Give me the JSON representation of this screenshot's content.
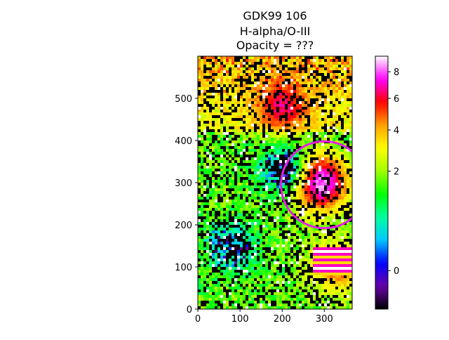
{
  "chart_data": {
    "type": "heatmap",
    "title_lines": [
      "GDK99 106",
      "H-alpha/O-III",
      "Opacity = ???"
    ],
    "xlabel": "",
    "ylabel": "",
    "xlim": [
      0,
      366
    ],
    "ylim": [
      0,
      600
    ],
    "x_ticks": [
      0,
      100,
      200,
      300
    ],
    "y_ticks": [
      0,
      100,
      200,
      300,
      400,
      500
    ],
    "colormap": "gist_ncar-like (black→purple→blue→cyan→green→yellow→orange→red→pink→white)",
    "colorbar": {
      "min": -0.3,
      "max": 9.3,
      "ticks": [
        0,
        2,
        4,
        6,
        8
      ],
      "scale": "sqrt-like (compressed at low values)"
    },
    "annotation": {
      "shape": "circle",
      "center": [
        300,
        295
      ],
      "radius": 103,
      "color": "#e61ee6"
    },
    "regions": [
      {
        "name": "bright-cloud-top",
        "center": [
          200,
          480
        ],
        "level": 6.5
      },
      {
        "name": "bright-cloud-right",
        "center": [
          290,
          300
        ],
        "level": 9
      },
      {
        "name": "dark-void-center",
        "center": [
          200,
          330
        ],
        "level": -0.3
      },
      {
        "name": "dark-void-lower-left",
        "center": [
          80,
          150
        ],
        "level": -0.3
      },
      {
        "name": "striped-artifact",
        "center": [
          330,
          100
        ],
        "level": 5
      }
    ]
  },
  "colors": {
    "colormap_stops": [
      "#000000",
      "#6a00a8",
      "#0000ff",
      "#00c8ff",
      "#00ffa0",
      "#00ff00",
      "#a0ff00",
      "#ffff00",
      "#ffa000",
      "#ff0000",
      "#ff00ff",
      "#ffffff"
    ],
    "axis": "#000000",
    "circle": "#e61ee6"
  }
}
